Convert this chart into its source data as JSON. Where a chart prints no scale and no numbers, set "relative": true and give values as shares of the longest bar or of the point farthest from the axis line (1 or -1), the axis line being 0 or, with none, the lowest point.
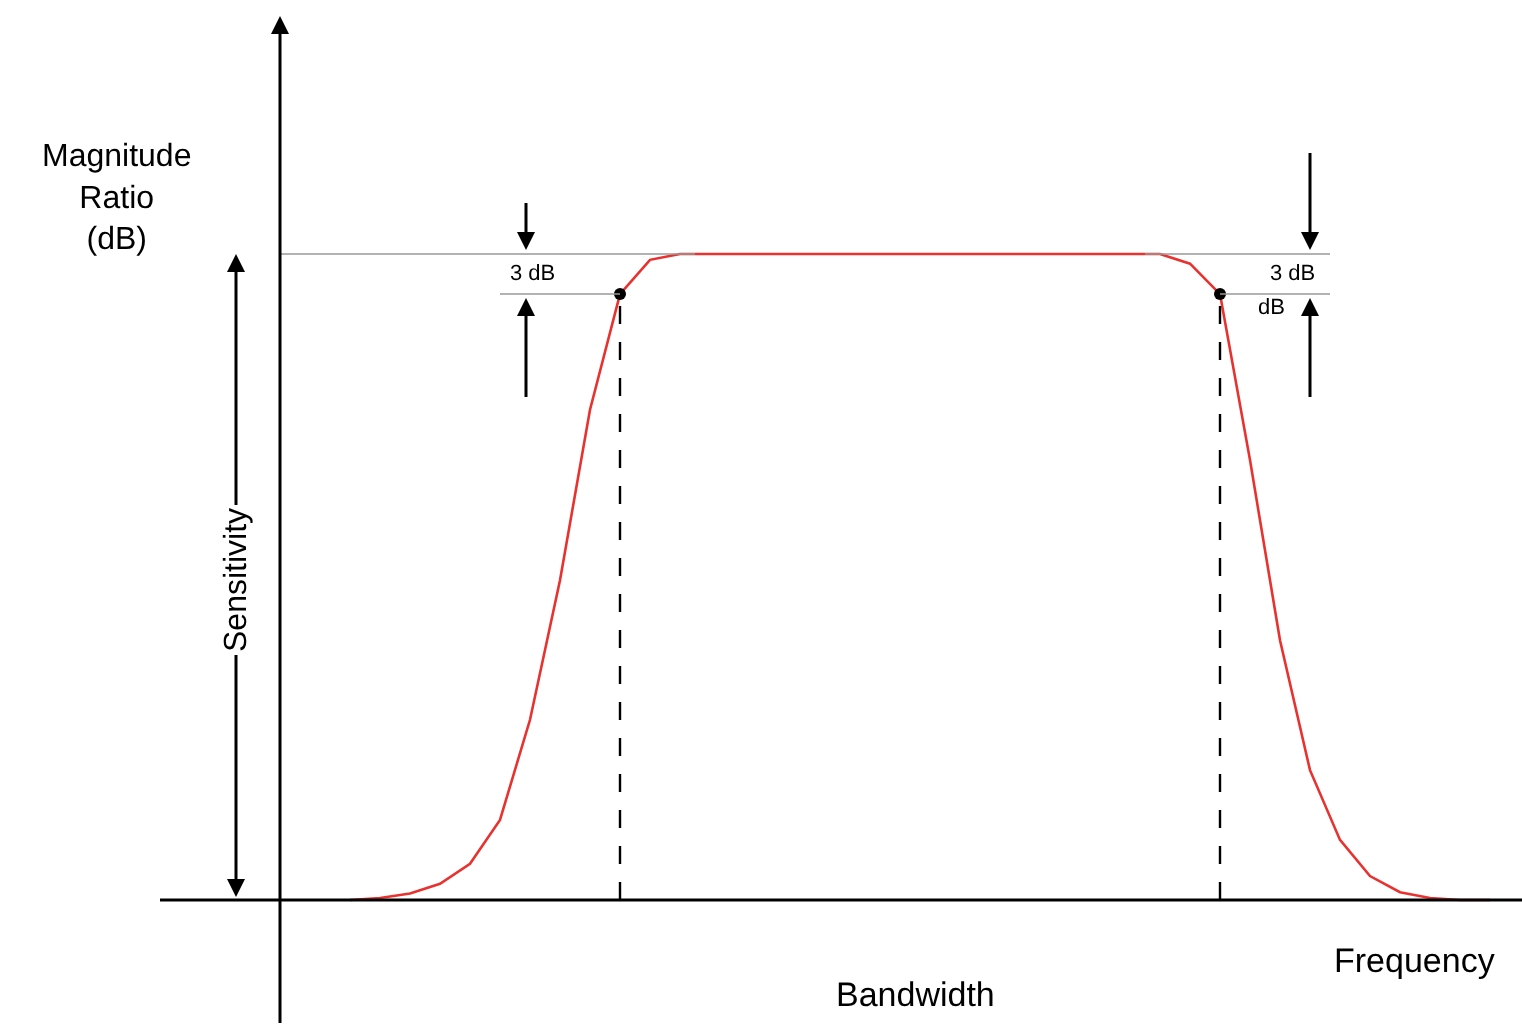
{
  "chart_data": {
    "type": "line",
    "relative": true,
    "xlabel": "Frequency",
    "ylabel": "Magnitude Ratio (dB)",
    "categories": [
      null,
      null,
      null,
      null,
      null,
      null,
      null,
      null,
      null,
      null,
      null,
      null,
      null,
      null,
      null,
      null,
      null,
      null,
      null,
      null,
      null,
      null,
      null,
      null,
      null,
      null,
      null,
      null,
      null,
      null,
      null,
      null,
      null,
      null,
      null,
      null,
      null,
      null,
      null
    ],
    "series": [
      {
        "color": "#e8322f",
        "line_style": "solid",
        "values": [
          0,
          0.003,
          0.01,
          0.025,
          0.056,
          0.124,
          0.279,
          0.495,
          0.759,
          0.938,
          0.991,
          1,
          1,
          1,
          1,
          1,
          1,
          1,
          1,
          1,
          1,
          1,
          1,
          1,
          1,
          1,
          1,
          1,
          0.985,
          0.938,
          0.681,
          0.402,
          0.201,
          0.093,
          0.037,
          0.012,
          0.003,
          0,
          0
        ]
      }
    ],
    "ref_lines": [
      {
        "axis": "y",
        "value": 1,
        "color": "#999999"
      },
      {
        "axis": "y",
        "value": 0.938,
        "color": "#999999"
      }
    ],
    "annotations": [
      "Sensitivity",
      "3 dB",
      "3 dB",
      "dB",
      "Bandwidth"
    ]
  }
}
